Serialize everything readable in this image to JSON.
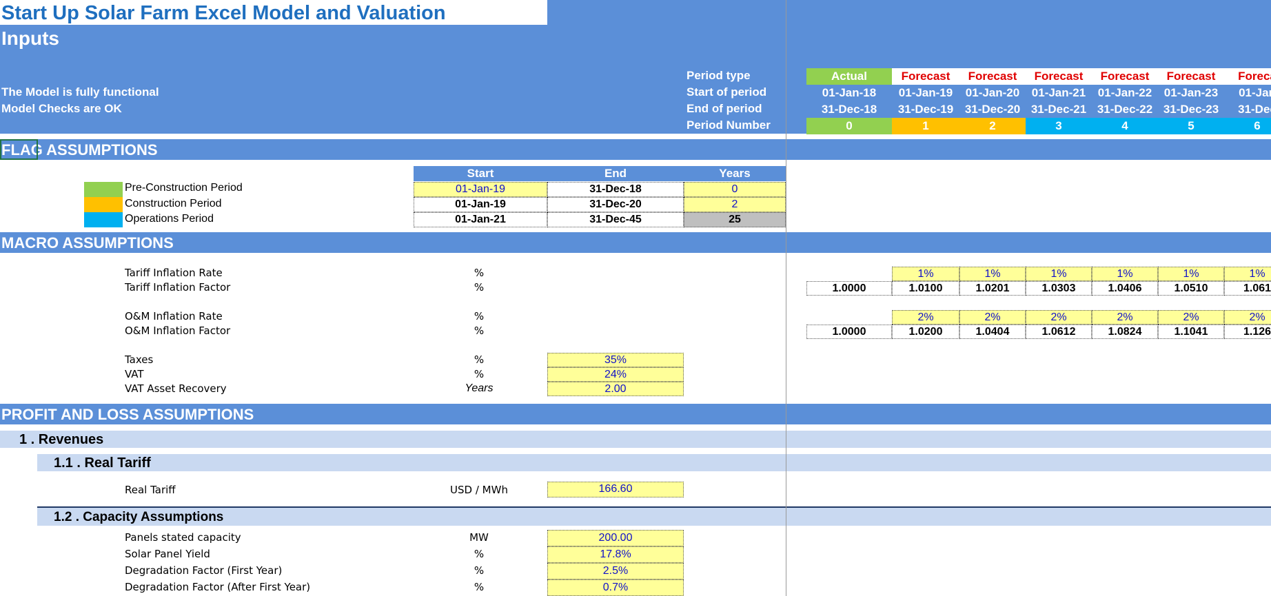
{
  "header": {
    "title": "Start Up Solar Farm Excel Model and Valuation",
    "subtitle": "Inputs",
    "status_functional": "The Model is fully functional",
    "status_checks": "Model Checks are OK",
    "period_labels": {
      "type": "Period type",
      "start": "Start of period",
      "end": "End of period",
      "number": "Period Number"
    }
  },
  "periods": [
    {
      "type": "Actual",
      "start": "01-Jan-18",
      "end": "31-Dec-18",
      "number": "0",
      "type_color": "#92d050",
      "number_color": "#92d050",
      "type_text": "#ffffff"
    },
    {
      "type": "Forecast",
      "start": "01-Jan-19",
      "end": "31-Dec-19",
      "number": "1",
      "type_color": "#ffffff",
      "number_color": "#ffc000",
      "type_text": "#e00000"
    },
    {
      "type": "Forecast",
      "start": "01-Jan-20",
      "end": "31-Dec-20",
      "number": "2",
      "type_color": "#ffffff",
      "number_color": "#ffc000",
      "type_text": "#e00000"
    },
    {
      "type": "Forecast",
      "start": "01-Jan-21",
      "end": "31-Dec-21",
      "number": "3",
      "type_color": "#ffffff",
      "number_color": "#00b0f0",
      "type_text": "#e00000"
    },
    {
      "type": "Forecast",
      "start": "01-Jan-22",
      "end": "31-Dec-22",
      "number": "4",
      "type_color": "#ffffff",
      "number_color": "#00b0f0",
      "type_text": "#e00000"
    },
    {
      "type": "Forecast",
      "start": "01-Jan-23",
      "end": "31-Dec-23",
      "number": "5",
      "type_color": "#ffffff",
      "number_color": "#00b0f0",
      "type_text": "#e00000"
    },
    {
      "type": "Foreca",
      "start": "01-Jan",
      "end": "31-Dec",
      "number": "6",
      "type_color": "#ffffff",
      "number_color": "#00b0f0",
      "type_text": "#e00000"
    }
  ],
  "sections": {
    "flag": "FLAG ASSUMPTIONS",
    "macro": "MACRO ASSUMPTIONS",
    "pnl": "PROFIT AND LOSS ASSUMPTIONS",
    "revenues": "1 . Revenues",
    "real_tariff": "1.1 . Real Tariff",
    "capacity": "1.2 . Capacity Assumptions"
  },
  "flag_table": {
    "headers": [
      "Start",
      "End",
      "Years"
    ],
    "rows": [
      {
        "label": "Pre-Construction Period",
        "color": "#92d050",
        "start": "01-Jan-19",
        "end": "31-Dec-18",
        "years": "0"
      },
      {
        "label": "Construction Period",
        "color": "#ffc000",
        "start": "01-Jan-19",
        "end": "31-Dec-20",
        "years": "2"
      },
      {
        "label": "Operations Period",
        "color": "#00b0f0",
        "start": "01-Jan-21",
        "end": "31-Dec-45",
        "years": "25"
      }
    ]
  },
  "macro": {
    "tariff_rate_label": "Tariff Inflation Rate",
    "tariff_factor_label": "Tariff Inflation Factor",
    "om_rate_label": "O&M Inflation Rate",
    "om_factor_label": "O&M Inflation Factor",
    "unit_pct": "%",
    "tariff_rates": [
      "1%",
      "1%",
      "1%",
      "1%",
      "1%",
      "1%"
    ],
    "tariff_factors": [
      "1.0000",
      "1.0100",
      "1.0201",
      "1.0303",
      "1.0406",
      "1.0510",
      "1.061"
    ],
    "om_rates": [
      "2%",
      "2%",
      "2%",
      "2%",
      "2%",
      "2%"
    ],
    "om_factors": [
      "1.0000",
      "1.0200",
      "1.0404",
      "1.0612",
      "1.0824",
      "1.1041",
      "1.126"
    ],
    "taxes_label": "Taxes",
    "taxes_value": "35%",
    "vat_label": "VAT",
    "vat_value": "24%",
    "vat_recovery_label": "VAT Asset Recovery",
    "vat_recovery_unit": "Years",
    "vat_recovery_value": "2.00"
  },
  "tariff": {
    "label": "Real Tariff",
    "unit": "USD / MWh",
    "value": "166.60"
  },
  "capacity": {
    "rows": [
      {
        "label": "Panels stated capacity",
        "unit": "MW",
        "value": "200.00"
      },
      {
        "label": "Solar Panel Yield",
        "unit": "%",
        "value": "17.8%"
      },
      {
        "label": "Degradation Factor (First Year)",
        "unit": "%",
        "value": "2.5%"
      },
      {
        "label": "Degradation Factor (After First Year)",
        "unit": "%",
        "value": "0.7%"
      }
    ]
  }
}
